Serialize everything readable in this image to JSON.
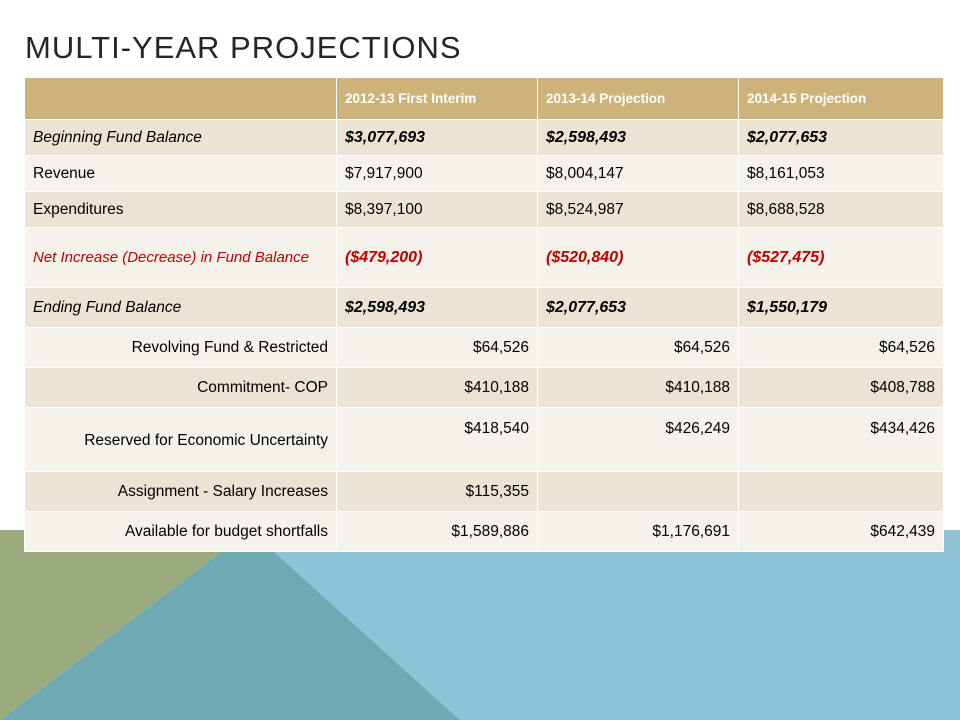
{
  "slide": {
    "title": "MULTI-YEAR PROJECTIONS"
  },
  "colors": {
    "header_fill": "#cdb37a",
    "row_band_dark": "#ebe3d3",
    "row_band_light": "#f5f2eb",
    "accent_red": "#c00000",
    "shape_green": "#9aab7e",
    "shape_teal": "#6fa9b4",
    "shape_blue": "#8cc3d7"
  },
  "table": {
    "columns": [
      "",
      "2012-13 First Interim",
      "2013-14 Projection",
      "2014-15 Projection"
    ],
    "rows": [
      {
        "label": "Beginning Fund Balance",
        "values": [
          "$3,077,693",
          "$2,598,493",
          "$2,077,653"
        ]
      },
      {
        "label": "Revenue",
        "values": [
          "$7,917,900",
          "$8,004,147",
          "$8,161,053"
        ]
      },
      {
        "label": "Expenditures",
        "values": [
          "$8,397,100",
          "$8,524,987",
          "$8,688,528"
        ]
      },
      {
        "label": "Net Increase (Decrease) in Fund Balance",
        "values": [
          "($479,200)",
          "($520,840)",
          "($527,475)"
        ]
      },
      {
        "label": "Ending Fund Balance",
        "values": [
          "$2,598,493",
          "$2,077,653",
          "$1,550,179"
        ]
      },
      {
        "label": "Revolving Fund & Restricted",
        "values": [
          "$64,526",
          "$64,526",
          "$64,526"
        ]
      },
      {
        "label": "Commitment- COP",
        "values": [
          "$410,188",
          "$410,188",
          "$408,788"
        ]
      },
      {
        "label": "Reserved for Economic Uncertainty",
        "values": [
          "$418,540",
          "$426,249",
          "$434,426"
        ]
      },
      {
        "label": "Assignment - Salary Increases",
        "values": [
          "$115,355",
          "",
          ""
        ]
      },
      {
        "label": "Available for budget shortfalls",
        "values": [
          "$1,589,886",
          "$1,176,691",
          "$642,439"
        ]
      }
    ]
  }
}
